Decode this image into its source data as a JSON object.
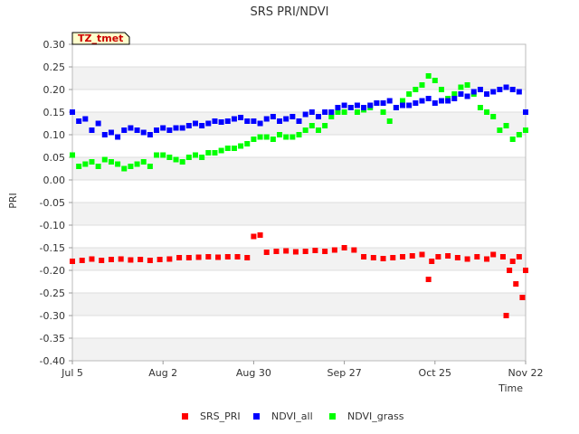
{
  "tz_tag": "TZ_tmet",
  "chart_data": {
    "type": "scatter",
    "title": "SRS PRI/NDVI",
    "xlabel": "Time",
    "ylabel": "PRI",
    "ylim": [
      -0.4,
      0.3
    ],
    "yticks": [
      0.3,
      0.25,
      0.2,
      0.15,
      0.1,
      0.05,
      0.0,
      -0.05,
      -0.1,
      -0.15,
      -0.2,
      -0.25,
      -0.3,
      -0.35,
      -0.4
    ],
    "ytick_labels": [
      "0.30",
      "0.25",
      "0.20",
      "0.15",
      "0.10",
      "0.05",
      "0.00",
      "-0.05",
      "-0.10",
      "-0.15",
      "-0.20",
      "-0.25",
      "-0.30",
      "-0.35",
      "-0.40"
    ],
    "xlim": [
      0,
      140
    ],
    "xticks": [
      {
        "label": "Jul 5",
        "day": 0
      },
      {
        "label": "Aug 2",
        "day": 28
      },
      {
        "label": "Aug 30",
        "day": 56
      },
      {
        "label": "Sep 27",
        "day": 84
      },
      {
        "label": "Oct 25",
        "day": 112
      },
      {
        "label": "Nov 22",
        "day": 140
      }
    ],
    "grid": "horizontal bands",
    "legend_position": "bottom",
    "series": [
      {
        "name": "SRS_PRI",
        "color": "#ff0000",
        "x": [
          0,
          3,
          6,
          9,
          12,
          15,
          18,
          21,
          24,
          27,
          30,
          33,
          36,
          39,
          42,
          45,
          48,
          51,
          54,
          56,
          58,
          60,
          63,
          66,
          69,
          72,
          75,
          78,
          81,
          84,
          87,
          90,
          93,
          96,
          99,
          102,
          105,
          108,
          110,
          111,
          113,
          116,
          119,
          122,
          125,
          128,
          130,
          133,
          134,
          135,
          136,
          137,
          138,
          139,
          140
        ],
        "y": [
          -0.18,
          -0.178,
          -0.175,
          -0.178,
          -0.176,
          -0.175,
          -0.177,
          -0.176,
          -0.178,
          -0.176,
          -0.175,
          -0.172,
          -0.172,
          -0.171,
          -0.17,
          -0.171,
          -0.17,
          -0.17,
          -0.172,
          -0.125,
          -0.122,
          -0.16,
          -0.158,
          -0.157,
          -0.159,
          -0.158,
          -0.156,
          -0.158,
          -0.155,
          -0.15,
          -0.155,
          -0.17,
          -0.172,
          -0.174,
          -0.172,
          -0.17,
          -0.168,
          -0.165,
          -0.22,
          -0.18,
          -0.17,
          -0.168,
          -0.172,
          -0.175,
          -0.17,
          -0.175,
          -0.165,
          -0.17,
          -0.3,
          -0.2,
          -0.18,
          -0.23,
          -0.17,
          -0.26,
          -0.2
        ]
      },
      {
        "name": "NDVI_all",
        "color": "#0000ff",
        "x": [
          0,
          2,
          4,
          6,
          8,
          10,
          12,
          14,
          16,
          18,
          20,
          22,
          24,
          26,
          28,
          30,
          32,
          34,
          36,
          38,
          40,
          42,
          44,
          46,
          48,
          50,
          52,
          54,
          56,
          58,
          60,
          62,
          64,
          66,
          68,
          70,
          72,
          74,
          76,
          78,
          80,
          82,
          84,
          86,
          88,
          90,
          92,
          94,
          96,
          98,
          100,
          102,
          104,
          106,
          108,
          110,
          112,
          114,
          116,
          118,
          120,
          122,
          124,
          126,
          128,
          130,
          132,
          134,
          136,
          138,
          140
        ],
        "y": [
          0.15,
          0.13,
          0.135,
          0.11,
          0.125,
          0.1,
          0.105,
          0.095,
          0.11,
          0.115,
          0.11,
          0.105,
          0.1,
          0.11,
          0.115,
          0.11,
          0.115,
          0.115,
          0.12,
          0.125,
          0.12,
          0.125,
          0.13,
          0.128,
          0.13,
          0.135,
          0.138,
          0.13,
          0.13,
          0.125,
          0.135,
          0.14,
          0.13,
          0.135,
          0.14,
          0.13,
          0.145,
          0.15,
          0.14,
          0.15,
          0.15,
          0.16,
          0.165,
          0.16,
          0.165,
          0.16,
          0.165,
          0.17,
          0.17,
          0.175,
          0.16,
          0.165,
          0.165,
          0.17,
          0.175,
          0.18,
          0.17,
          0.175,
          0.175,
          0.18,
          0.19,
          0.185,
          0.195,
          0.2,
          0.19,
          0.195,
          0.2,
          0.205,
          0.2,
          0.195,
          0.15
        ]
      },
      {
        "name": "NDVI_grass",
        "color": "#00ff00",
        "x": [
          0,
          2,
          4,
          6,
          8,
          10,
          12,
          14,
          16,
          18,
          20,
          22,
          24,
          26,
          28,
          30,
          32,
          34,
          36,
          38,
          40,
          42,
          44,
          46,
          48,
          50,
          52,
          54,
          56,
          58,
          60,
          62,
          64,
          66,
          68,
          70,
          72,
          74,
          76,
          78,
          80,
          82,
          84,
          86,
          88,
          90,
          92,
          94,
          96,
          98,
          100,
          102,
          104,
          106,
          108,
          110,
          112,
          114,
          116,
          118,
          120,
          122,
          124,
          126,
          128,
          130,
          132,
          134,
          136,
          138,
          140
        ],
        "y": [
          0.055,
          0.03,
          0.035,
          0.04,
          0.03,
          0.045,
          0.04,
          0.035,
          0.025,
          0.03,
          0.035,
          0.04,
          0.03,
          0.055,
          0.055,
          0.05,
          0.045,
          0.04,
          0.05,
          0.055,
          0.05,
          0.06,
          0.06,
          0.065,
          0.07,
          0.07,
          0.075,
          0.08,
          0.09,
          0.095,
          0.095,
          0.09,
          0.1,
          0.095,
          0.095,
          0.1,
          0.11,
          0.12,
          0.11,
          0.12,
          0.14,
          0.15,
          0.15,
          0.16,
          0.15,
          0.155,
          0.16,
          0.17,
          0.15,
          0.13,
          0.16,
          0.175,
          0.19,
          0.2,
          0.21,
          0.23,
          0.22,
          0.2,
          0.18,
          0.19,
          0.205,
          0.21,
          0.19,
          0.16,
          0.15,
          0.14,
          0.11,
          0.12,
          0.09,
          0.1,
          0.11
        ]
      }
    ]
  }
}
